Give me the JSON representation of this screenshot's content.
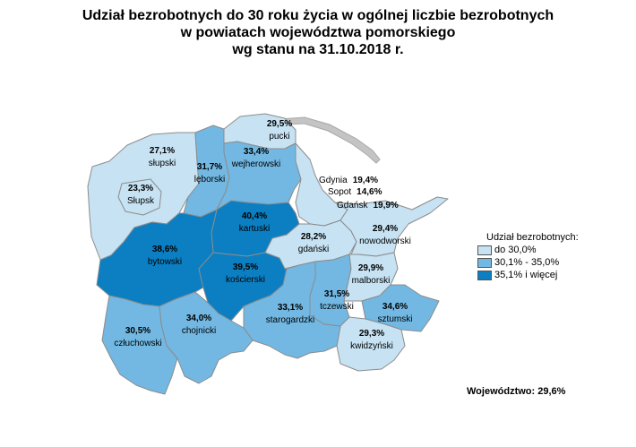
{
  "title": {
    "line1": "Udział bezrobotnych do 30 roku życia w ogólnej liczbie bezrobotnych",
    "line2": "w powiatach województwa pomorskiego",
    "line3": "wg stanu na 31.10.2018 r."
  },
  "colors": {
    "class1": "#c6e2f3",
    "class2": "#72b8e3",
    "class3": "#0b7fc2",
    "border": "#8c8c8c",
    "coast": "#c4c4c4"
  },
  "legend": {
    "title": "Udział bezrobotnych:",
    "items": [
      {
        "label": "do 30,0%",
        "color": "#c6e2f3"
      },
      {
        "label": "30,1% - 35,0%",
        "color": "#72b8e3"
      },
      {
        "label": "35,1% i więcej",
        "color": "#0b7fc2"
      }
    ]
  },
  "summary": "Województwo: 29,6%",
  "districts": {
    "pucki": {
      "name": "pucki",
      "value": "29,5%",
      "class": 1
    },
    "wejherowski": {
      "name": "wejherowski",
      "value": "33,4%",
      "class": 2
    },
    "leborski": {
      "name": "lęborski",
      "value": "31,7%",
      "class": 2
    },
    "slupski": {
      "name": "słupski",
      "value": "27,1%",
      "class": 1
    },
    "slupsk": {
      "name": "Słupsk",
      "value": "23,3%",
      "class": 1
    },
    "kartuski": {
      "name": "kartuski",
      "value": "40,4%",
      "class": 3
    },
    "bytowski": {
      "name": "bytowski",
      "value": "38,6%",
      "class": 3
    },
    "koscierski": {
      "name": "kościerski",
      "value": "39,5%",
      "class": 3
    },
    "gdanski": {
      "name": "gdański",
      "value": "28,2%",
      "class": 1
    },
    "nowodworski": {
      "name": "nowodworski",
      "value": "29,4%",
      "class": 1
    },
    "malborski": {
      "name": "malborski",
      "value": "29,9%",
      "class": 1
    },
    "tczewski": {
      "name": "tczewski",
      "value": "31,5%",
      "class": 2
    },
    "sztumski": {
      "name": "sztumski",
      "value": "34,6%",
      "class": 2
    },
    "kwidzynski": {
      "name": "kwidzyński",
      "value": "29,3%",
      "class": 1
    },
    "starogardzki": {
      "name": "starogardzki",
      "value": "33,1%",
      "class": 2
    },
    "chojnicki": {
      "name": "chojnicki",
      "value": "34,0%",
      "class": 2
    },
    "czluchowski": {
      "name": "człuchowski",
      "value": "30,5%",
      "class": 2
    }
  },
  "cities": [
    {
      "key": "gdynia",
      "name": "Gdynia",
      "value": "19,4%"
    },
    {
      "key": "sopot",
      "name": "Sopot",
      "value": "14,6%"
    },
    {
      "key": "gdansk",
      "name": "Gdańsk",
      "value": "19,9%"
    }
  ]
}
